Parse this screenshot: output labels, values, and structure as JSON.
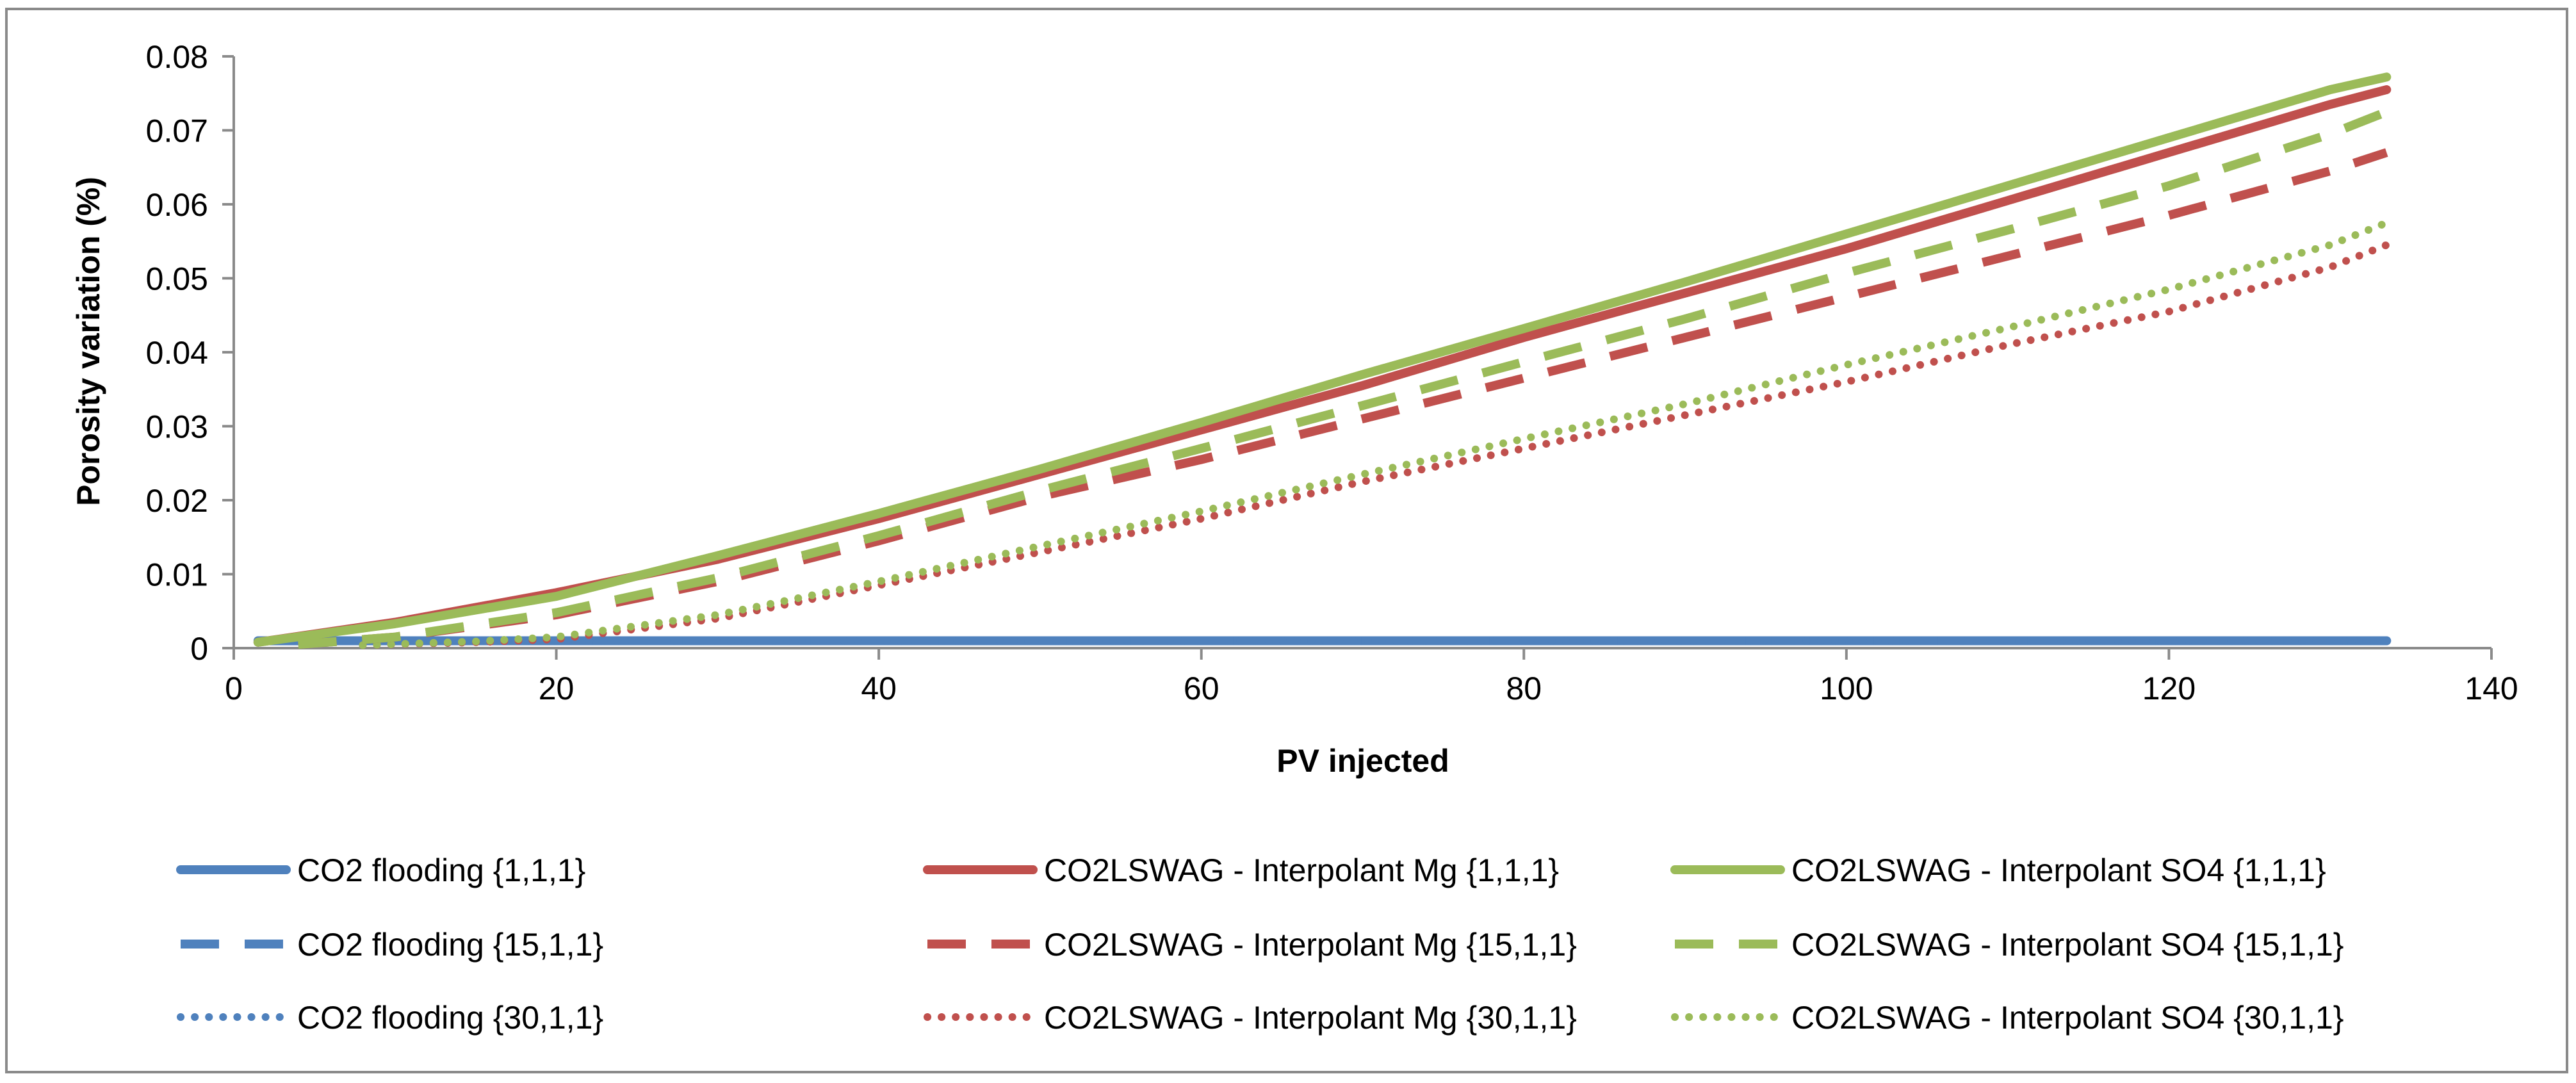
{
  "chart_data": {
    "type": "line",
    "title": "",
    "xlabel": "PV injected",
    "ylabel": "Porosity variation (%)",
    "xlim": [
      0,
      140
    ],
    "ylim": [
      0,
      0.08
    ],
    "x_ticks": [
      "0",
      "20",
      "40",
      "60",
      "80",
      "100",
      "120",
      "140"
    ],
    "y_ticks": [
      "0",
      "0.01",
      "0.02",
      "0.03",
      "0.04",
      "0.05",
      "0.06",
      "0.07",
      "0.08"
    ],
    "grid": false,
    "legend_position": "bottom",
    "series": [
      {
        "name": "CO2 flooding {1,1,1}",
        "color": "#4f81bd",
        "style": "solid",
        "x": [
          1.5,
          20,
          40,
          60,
          80,
          100,
          120,
          133.5
        ],
        "y": [
          0.001,
          0.001,
          0.001,
          0.001,
          0.001,
          0.001,
          0.001,
          0.001
        ]
      },
      {
        "name": "CO2 flooding {15,1,1}",
        "color": "#4f81bd",
        "style": "dashed",
        "x": [
          4,
          20,
          40,
          60,
          80,
          100,
          120,
          133.5
        ],
        "y": [
          0.001,
          0.001,
          0.001,
          0.001,
          0.001,
          0.001,
          0.001,
          0.001
        ]
      },
      {
        "name": "CO2 flooding {30,1,1}",
        "color": "#4f81bd",
        "style": "dotted",
        "x": [
          8,
          20,
          40,
          60,
          80,
          100,
          120,
          133.5
        ],
        "y": [
          0.001,
          0.001,
          0.001,
          0.001,
          0.001,
          0.001,
          0.001,
          0.001
        ]
      },
      {
        "name": "CO2LSWAG - Interpolant Mg {1,1,1}",
        "color": "#c0504d",
        "style": "solid",
        "x": [
          1.5,
          10,
          20,
          30,
          40,
          50,
          60,
          70,
          80,
          90,
          100,
          110,
          120,
          130,
          133.5
        ],
        "y": [
          0.0008,
          0.0035,
          0.0075,
          0.012,
          0.0175,
          0.0235,
          0.0295,
          0.0355,
          0.042,
          0.048,
          0.054,
          0.0605,
          0.067,
          0.0735,
          0.0755
        ]
      },
      {
        "name": "CO2LSWAG - Interpolant Mg {15,1,1}",
        "color": "#c0504d",
        "style": "dashed",
        "x": [
          4,
          10,
          20,
          30,
          40,
          50,
          60,
          70,
          80,
          90,
          100,
          110,
          120,
          130,
          133.5
        ],
        "y": [
          0.0005,
          0.0015,
          0.0045,
          0.009,
          0.0145,
          0.0205,
          0.0255,
          0.031,
          0.0365,
          0.042,
          0.0475,
          0.053,
          0.0585,
          0.0645,
          0.067
        ]
      },
      {
        "name": "CO2LSWAG - Interpolant Mg {30,1,1}",
        "color": "#c0504d",
        "style": "dotted",
        "x": [
          8,
          15,
          20,
          30,
          40,
          50,
          60,
          70,
          80,
          90,
          100,
          110,
          120,
          130,
          133.5
        ],
        "y": [
          0.0004,
          0.0008,
          0.0012,
          0.004,
          0.0085,
          0.013,
          0.0175,
          0.0225,
          0.027,
          0.0315,
          0.036,
          0.041,
          0.0455,
          0.0515,
          0.0545
        ]
      },
      {
        "name": "CO2LSWAG - Interpolant SO4 {1,1,1}",
        "color": "#9bbb59",
        "style": "solid",
        "x": [
          1.5,
          10,
          20,
          30,
          40,
          50,
          60,
          70,
          80,
          90,
          100,
          110,
          120,
          130,
          133.5
        ],
        "y": [
          0.0008,
          0.0033,
          0.007,
          0.0125,
          0.0182,
          0.0242,
          0.0305,
          0.037,
          0.0432,
          0.0495,
          0.056,
          0.0625,
          0.069,
          0.0755,
          0.0772
        ]
      },
      {
        "name": "CO2LSWAG - Interpolant SO4 {15,1,1}",
        "color": "#9bbb59",
        "style": "dashed",
        "x": [
          4,
          10,
          20,
          30,
          40,
          50,
          60,
          70,
          80,
          90,
          100,
          110,
          120,
          130,
          133.5
        ],
        "y": [
          0.0005,
          0.0015,
          0.0048,
          0.0095,
          0.0152,
          0.0213,
          0.027,
          0.0328,
          0.0387,
          0.0445,
          0.0507,
          0.0565,
          0.0625,
          0.0695,
          0.0725
        ]
      },
      {
        "name": "CO2LSWAG - Interpolant SO4 {30,1,1}",
        "color": "#9bbb59",
        "style": "dotted",
        "x": [
          8,
          15,
          20,
          30,
          40,
          50,
          60,
          70,
          80,
          90,
          100,
          110,
          120,
          130,
          133.5
        ],
        "y": [
          0.0004,
          0.0009,
          0.0015,
          0.0045,
          0.009,
          0.0138,
          0.0185,
          0.0235,
          0.0283,
          0.033,
          0.0383,
          0.0433,
          0.0485,
          0.0545,
          0.0575
        ]
      }
    ]
  }
}
